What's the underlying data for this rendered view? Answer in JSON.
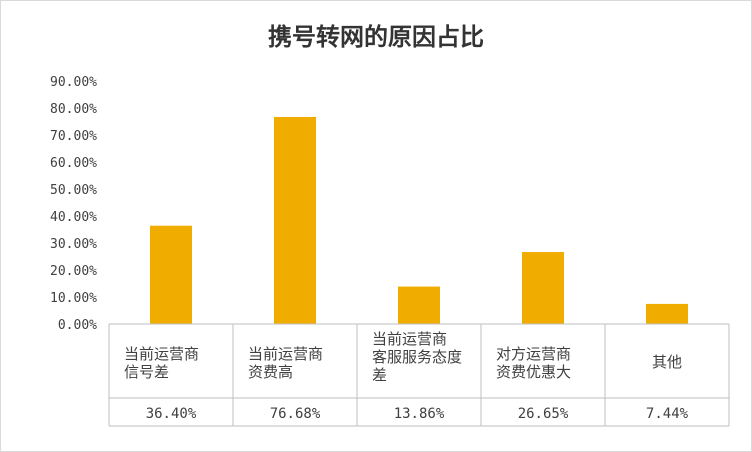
{
  "chart_data": {
    "type": "bar",
    "title": "携号转网的原因占比",
    "categories": [
      [
        "当前运营商",
        "信号差"
      ],
      [
        "当前运营商",
        "资费高"
      ],
      [
        "当前运营商",
        "客服服务态度",
        "差"
      ],
      [
        "对方运营商",
        "资费优惠大"
      ],
      [
        "其他"
      ]
    ],
    "values": [
      36.4,
      76.68,
      13.86,
      26.65,
      7.44
    ],
    "value_labels": [
      "36.40%",
      "76.68%",
      "13.86%",
      "26.65%",
      "7.44%"
    ],
    "yticks": [
      "0.00%",
      "10.00%",
      "20.00%",
      "30.00%",
      "40.00%",
      "50.00%",
      "60.00%",
      "70.00%",
      "80.00%",
      "90.00%"
    ],
    "ylim": [
      0,
      90
    ],
    "bar_color": "#f0ad00",
    "gridlines": false,
    "legend": "none",
    "data_table": true
  }
}
